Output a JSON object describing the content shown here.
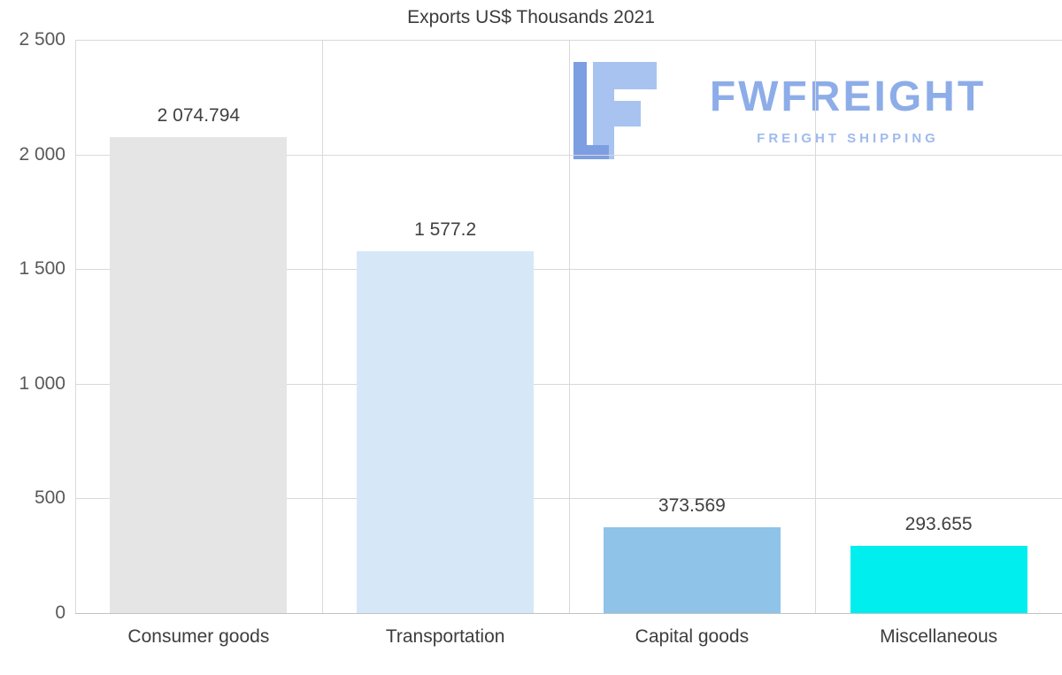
{
  "logo": {
    "name": "FWFREIGHT",
    "subtitle": "FREIGHT SHIPPING",
    "color_dark": "#7e9ee2",
    "color_light": "#a8c3f0",
    "text_color": "#8dade9",
    "subtitle_color": "#9fbaec"
  },
  "chart_data": {
    "type": "bar",
    "title": "Exports US$ Thousands 2021",
    "categories": [
      "Consumer goods",
      "Transportation",
      "Capital goods",
      "Miscellaneous"
    ],
    "values": [
      2074.794,
      1577.2,
      373.569,
      293.655
    ],
    "value_labels": [
      "2 074.794",
      "1 577.2",
      "373.569",
      "293.655"
    ],
    "bar_colors": [
      "#e5e5e5",
      "#d6e8f8",
      "#8fc3e8",
      "#00eeee"
    ],
    "xlabel": "",
    "ylabel": "",
    "ylim": [
      0,
      2500
    ],
    "yticks": [
      0,
      500,
      1000,
      1500,
      2000,
      2500
    ],
    "ytick_labels": [
      "0",
      "500",
      "1 000",
      "1 500",
      "2 000",
      "2 500"
    ],
    "grid": true,
    "legend": "none",
    "gridline_color": "#d9d9d9",
    "axis_text_color": "#595959"
  }
}
